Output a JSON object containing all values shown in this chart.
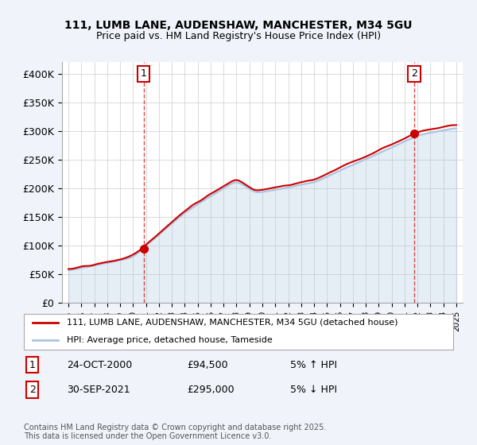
{
  "title_line1": "111, LUMB LANE, AUDENSHAW, MANCHESTER, M34 5GU",
  "title_line2": "Price paid vs. HM Land Registry's House Price Index (HPI)",
  "ylabel_ticks": [
    "£0",
    "£50K",
    "£100K",
    "£150K",
    "£200K",
    "£250K",
    "£300K",
    "£350K",
    "£400K"
  ],
  "ytick_values": [
    0,
    50000,
    100000,
    150000,
    200000,
    250000,
    300000,
    350000,
    400000
  ],
  "ylim": [
    0,
    420000
  ],
  "xlim_years": [
    1994.5,
    2025.5
  ],
  "hpi_color": "#aac4e0",
  "price_color": "#cc0000",
  "point1_color": "#cc0000",
  "point2_color": "#cc0000",
  "marker1_x": 2000.81,
  "marker1_y": 94500,
  "marker2_x": 2021.75,
  "marker2_y": 295000,
  "annotation1_label": "1",
  "annotation2_label": "2",
  "legend_line1": "111, LUMB LANE, AUDENSHAW, MANCHESTER, M34 5GU (detached house)",
  "legend_line2": "HPI: Average price, detached house, Tameside",
  "note1_label": "1",
  "note1_date": "24-OCT-2000",
  "note1_price": "£94,500",
  "note1_hpi": "5% ↑ HPI",
  "note2_label": "2",
  "note2_date": "30-SEP-2021",
  "note2_price": "£295,000",
  "note2_hpi": "5% ↓ HPI",
  "footer": "Contains HM Land Registry data © Crown copyright and database right 2025.\nThis data is licensed under the Open Government Licence v3.0.",
  "background_color": "#f0f4f8",
  "plot_bg_color": "#ffffff",
  "grid_color": "#cccccc"
}
